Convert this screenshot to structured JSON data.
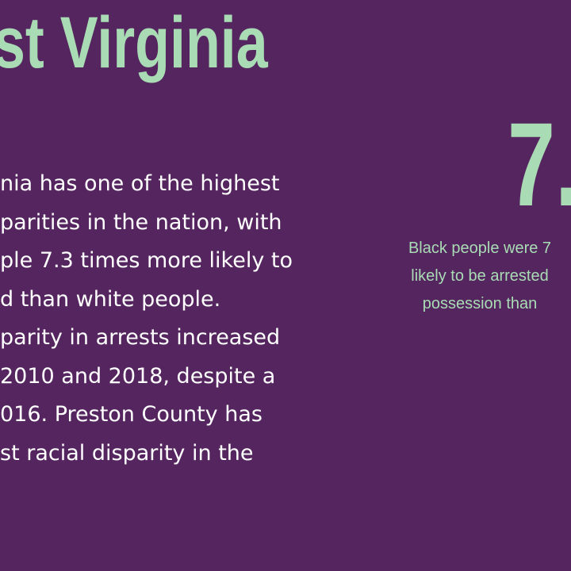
{
  "colors": {
    "background": "#55255f",
    "accent": "#a9dcb4",
    "body_text": "#ffffff"
  },
  "title": "st Virginia",
  "body_lines": [
    "nia has one of the highest",
    "parities in the nation, with",
    "ple 7.3 times more likely to",
    "d than white people.",
    "parity in arrests increased",
    "2010 and 2018, despite a",
    "016. Preston County has",
    "st racial disparity in the"
  ],
  "stat": {
    "number": "7.",
    "caption_lines": [
      "Black people were 7",
      "likely to be arrested",
      "possession than"
    ]
  }
}
